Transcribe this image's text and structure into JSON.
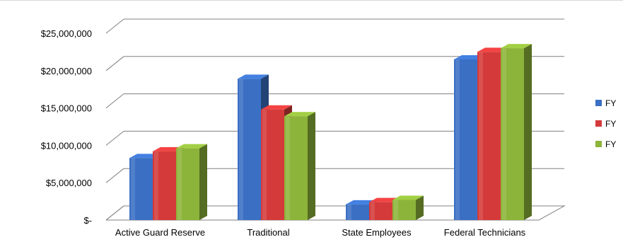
{
  "chart_data": {
    "type": "bar",
    "title": "",
    "xlabel": "",
    "ylabel": "",
    "categories": [
      "Active Guard Reserve",
      "Traditional",
      "State Employees",
      "Federal Technicians"
    ],
    "series": [
      {
        "name": "FY",
        "color": "#3a6fc4",
        "values": [
          8300000,
          18900000,
          2100000,
          21500000
        ]
      },
      {
        "name": "FY",
        "color": "#d43a3a",
        "values": [
          9200000,
          14800000,
          2400000,
          22500000
        ]
      },
      {
        "name": "FY",
        "color": "#8db43a",
        "values": [
          9600000,
          13900000,
          2700000,
          23000000
        ]
      }
    ],
    "ylim": [
      0,
      25000000
    ],
    "yticks": [
      "$-",
      "$5,000,000",
      "$10,000,000",
      "$15,000,000",
      "$20,000,000",
      "$25,000,000"
    ],
    "yticks_values": [
      0,
      5000000,
      10000000,
      15000000,
      20000000,
      25000000
    ],
    "grid": true,
    "legend_position": "right"
  }
}
